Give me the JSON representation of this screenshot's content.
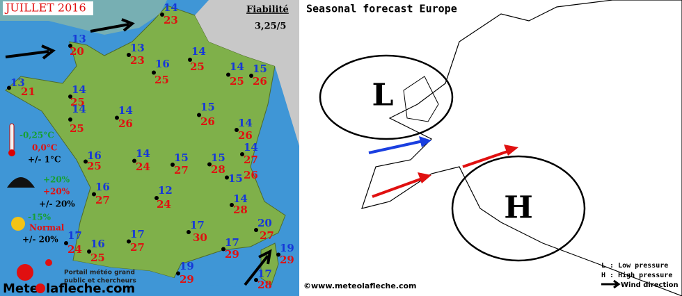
{
  "header": {
    "title": "JUILLET 2016",
    "reliability_label": "Fiabilité",
    "reliability": "3,25/5"
  },
  "legend": {
    "temperature": "-0,25°C",
    "temperature_normal": "0,0°C",
    "temperature_range": "+/- 1°C",
    "rain_1": "+20%",
    "rain_2": "+20%",
    "rain_range": "+/- 20%",
    "sun": "-15%",
    "sun_normal": "Normal",
    "sun_range": "+/- 20%"
  },
  "footer": {
    "tagline_1": "Portail météo grand",
    "tagline_2": "public et chercheurs",
    "site_1": "Mete",
    "site_2": "lafleche.com"
  },
  "cities": [
    {
      "min": 14,
      "max": 23
    },
    {
      "min": 13,
      "max": 20
    },
    {
      "min": 13,
      "max": 23
    },
    {
      "min": 14,
      "max": 25
    },
    {
      "min": 16,
      "max": 25
    },
    {
      "min": 13,
      "max": 21
    },
    {
      "min": 14,
      "max": 25
    },
    {
      "min": 14,
      "max": 25
    },
    {
      "min": 15,
      "max": 26
    },
    {
      "min": 14,
      "max": 25
    },
    {
      "min": 14,
      "max": 26
    },
    {
      "min": 15,
      "max": 26
    },
    {
      "min": 14,
      "max": 26
    },
    {
      "min": 16,
      "max": 25
    },
    {
      "min": 14,
      "max": 24
    },
    {
      "min": 15,
      "max": 27
    },
    {
      "min": 15,
      "max": 28
    },
    {
      "min": 14,
      "max": 27
    },
    {
      "min": 15,
      "max": 26
    },
    {
      "min": 16,
      "max": 27
    },
    {
      "min": 12,
      "max": 24
    },
    {
      "min": 14,
      "max": 28
    },
    {
      "min": 17,
      "max": 27
    },
    {
      "min": 17,
      "max": 30
    },
    {
      "min": 20,
      "max": 27
    },
    {
      "min": 17,
      "max": 24
    },
    {
      "min": 16,
      "max": 25
    },
    {
      "min": 17,
      "max": 29
    },
    {
      "min": 19,
      "max": 29
    },
    {
      "min": 19,
      "max": 29
    },
    {
      "min": 17,
      "max": 28
    }
  ],
  "europe": {
    "title": "Seasonal forecast Europe",
    "low": "L",
    "high": "H",
    "legend_low": "L : Low pressure",
    "legend_high": "H : High pressure",
    "legend_wind": "Wind direction",
    "copyright": "©www.meteolafleche.com"
  }
}
